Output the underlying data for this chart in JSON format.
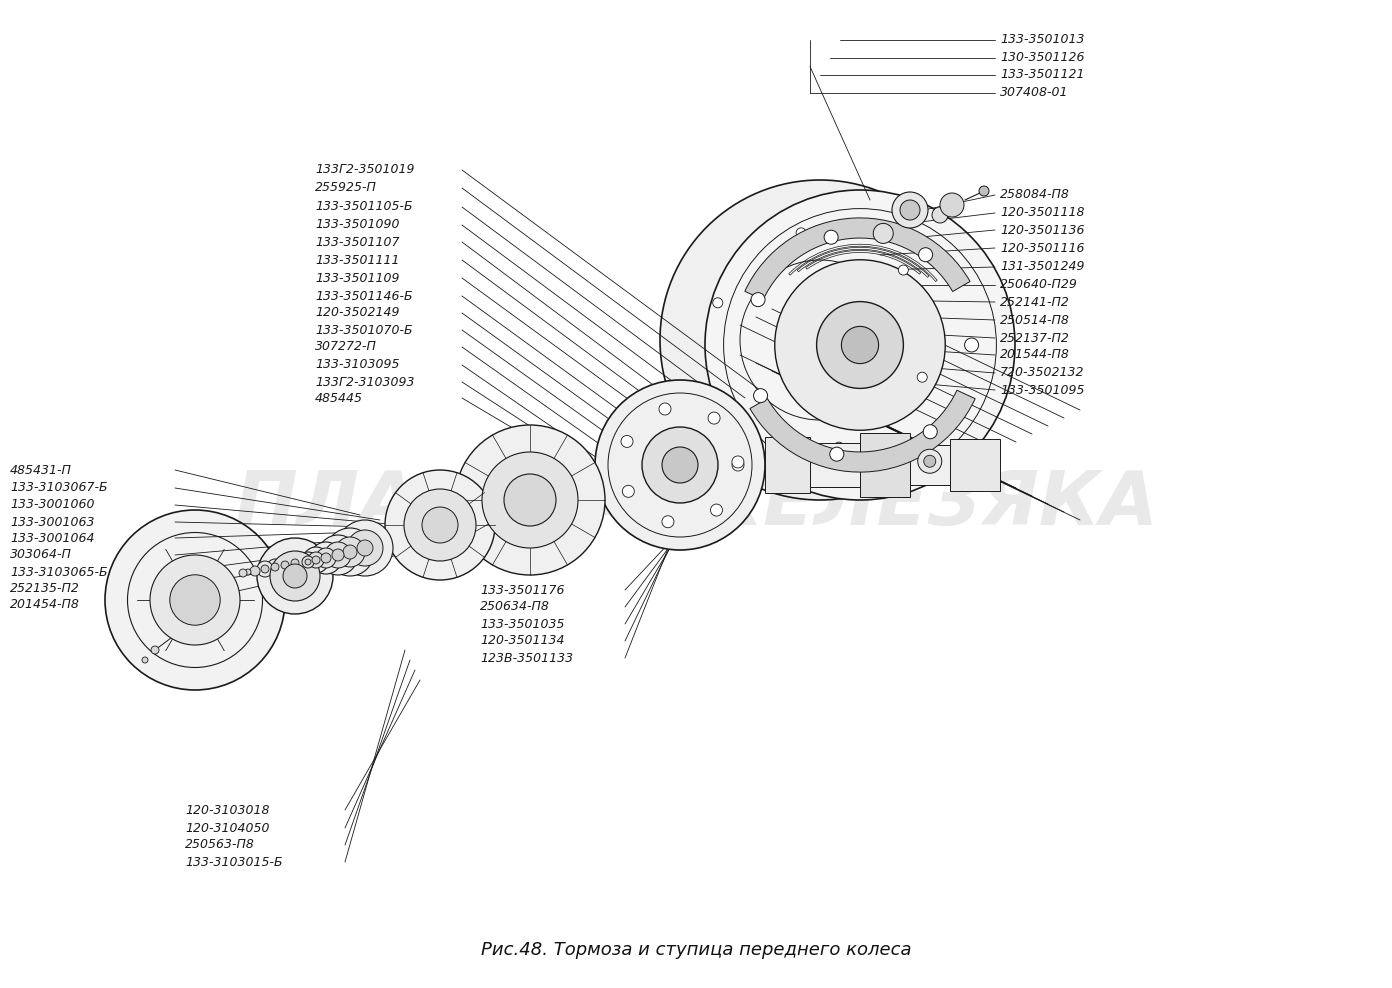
{
  "title": "Рис.48. Тормоза и ступица переднего колеса",
  "bg": "#ffffff",
  "lc": "#1a1a1a",
  "watermark": "ПЛАНЕТА-ЖЕЛЕЗЯКА",
  "wm_color": "#c8c8c8",
  "wm_alpha": 0.4,
  "fig_w": 13.92,
  "fig_h": 9.88,
  "dpi": 100,
  "label_fs": 9.0,
  "title_fs": 13,
  "labels_right_top": [
    "133-3501013",
    "130-3501126",
    "133-3501121",
    "307408-01"
  ],
  "labels_right_main": [
    "258084-П8",
    "120-3501118",
    "120-3501136",
    "120-3501116",
    "131-3501249",
    "250640-П29",
    "252141-П2",
    "250514-П8",
    "252137-П2",
    "201544-П8",
    "720-3502132",
    "133-3501095"
  ],
  "labels_center_top": [
    "133Г2-3501019",
    "255925-П",
    "133-3501105-Б",
    "133-3501090",
    "133-3501107",
    "133-3501111",
    "133-3501109",
    "133-3501146-Б",
    "120-3502149",
    "133-3501070-Б",
    "307272-П",
    "133-3103095",
    "133Г2-3103093",
    "485445"
  ],
  "labels_left": [
    "485431-П",
    "133-3103067-Б",
    "133-3001060",
    "133-3001063",
    "133-3001064",
    "303064-П",
    "133-3103065-Б",
    "252135-П2",
    "201454-П8"
  ],
  "labels_center_bottom": [
    "133-3501176",
    "250634-П8",
    "133-3501035",
    "120-3501134",
    "123В-3501133"
  ],
  "labels_bottom_left": [
    "120-3103018",
    "120-3104050",
    "250563-П8",
    "133-3103015-Б"
  ]
}
